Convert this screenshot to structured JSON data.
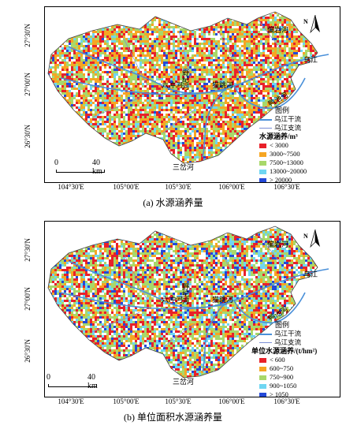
{
  "panels": [
    {
      "id": "a",
      "caption": "(a) 水源涵养量",
      "legend": {
        "title": "图例",
        "main_river": "乌江干流",
        "tributary": "乌江支流",
        "header": "水源涵养/m³",
        "classes": [
          {
            "label": "< 3000",
            "color": "#e8212a"
          },
          {
            "label": "3000~7500",
            "color": "#f6a623"
          },
          {
            "label": "7500~13000",
            "color": "#a8d86a"
          },
          {
            "label": "13000~20000",
            "color": "#6fd6f2"
          },
          {
            "label": "> 20000",
            "color": "#2449d8"
          }
        ]
      },
      "rivers": {
        "pianyan": "偏岩河",
        "wujiang": "乌江",
        "sancha": "三岔河",
        "liuchong": "六冲河",
        "yeji": "野纪河",
        "maotiao": "猫跳河",
        "yachi": "鸭池河"
      },
      "north": "N",
      "scale": {
        "zero": "0",
        "distance": "40 km"
      }
    },
    {
      "id": "b",
      "caption": "(b) 单位面积水源涵养量",
      "legend": {
        "title": "图例",
        "main_river": "乌江干流",
        "tributary": "乌江支流",
        "header": "单位水源涵养/(t/hm²)",
        "classes": [
          {
            "label": "< 600",
            "color": "#e8212a"
          },
          {
            "label": "600~750",
            "color": "#f6a623"
          },
          {
            "label": "750~900",
            "color": "#a8d86a"
          },
          {
            "label": "900~1050",
            "color": "#6fd6f2"
          },
          {
            "label": "> 1050",
            "color": "#2449d8"
          }
        ]
      },
      "rivers": {
        "pianyan": "偏岩河",
        "wujiang": "乌江",
        "sancha": "三岔河",
        "liuchong": "六冲河",
        "yeji": "野纪河",
        "maotiao": "猫跳河",
        "yachi": "鸭池河"
      },
      "north": "N",
      "scale": {
        "zero": "0",
        "distance": "40 km"
      }
    }
  ],
  "lat_labels": [
    "27°30'N",
    "27°00'N",
    "26°30'N"
  ],
  "lon_labels": [
    "104°30'E",
    "105°00'E",
    "105°30'E",
    "106°00'E",
    "106°30'E"
  ],
  "colors": {
    "main_river": "#4a90d9",
    "tributary": "#7b8fd6",
    "boundary": "#444444"
  }
}
